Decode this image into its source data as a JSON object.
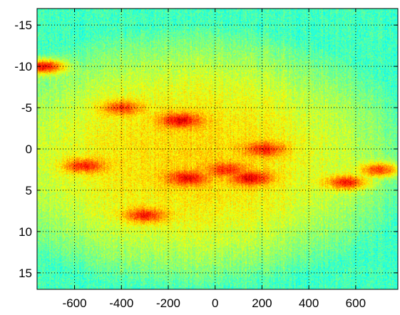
{
  "chart_data": {
    "type": "heatmap",
    "title": "",
    "xlabel": "",
    "ylabel": "",
    "xlim": [
      -760,
      780
    ],
    "ylim": [
      17,
      -17
    ],
    "x_ticks": [
      -600,
      -400,
      -200,
      0,
      200,
      400,
      600
    ],
    "y_ticks": [
      -15,
      -10,
      -5,
      0,
      5,
      10,
      15
    ],
    "x_tick_labels": [
      "-600",
      "-400",
      "-200",
      "0",
      "200",
      "400",
      "600"
    ],
    "y_tick_labels": [
      "-15",
      "-10",
      "-5",
      "0",
      "5",
      "10",
      "15"
    ],
    "grid": true,
    "grid_style": "dotted",
    "colormap": "jet",
    "color_range": [
      0,
      1
    ],
    "colors": {
      "low": "#3fd4c0",
      "mid": "#c8f04a",
      "high": "#ffe22a",
      "peak": "#ee5a10"
    },
    "hotspots": [
      {
        "x": -730,
        "y": -10,
        "value": 0.88
      },
      {
        "x": -400,
        "y": -5,
        "value": 0.82
      },
      {
        "x": -150,
        "y": -3.5,
        "value": 0.9
      },
      {
        "x": -560,
        "y": 2,
        "value": 0.85
      },
      {
        "x": -120,
        "y": 3.5,
        "value": 0.88
      },
      {
        "x": 150,
        "y": 3.5,
        "value": 0.9
      },
      {
        "x": 210,
        "y": 0,
        "value": 0.85
      },
      {
        "x": -300,
        "y": 8,
        "value": 0.86
      },
      {
        "x": 560,
        "y": 4,
        "value": 0.85
      },
      {
        "x": 700,
        "y": 2.5,
        "value": 0.82
      },
      {
        "x": 50,
        "y": 2.5,
        "value": 0.84
      }
    ]
  }
}
